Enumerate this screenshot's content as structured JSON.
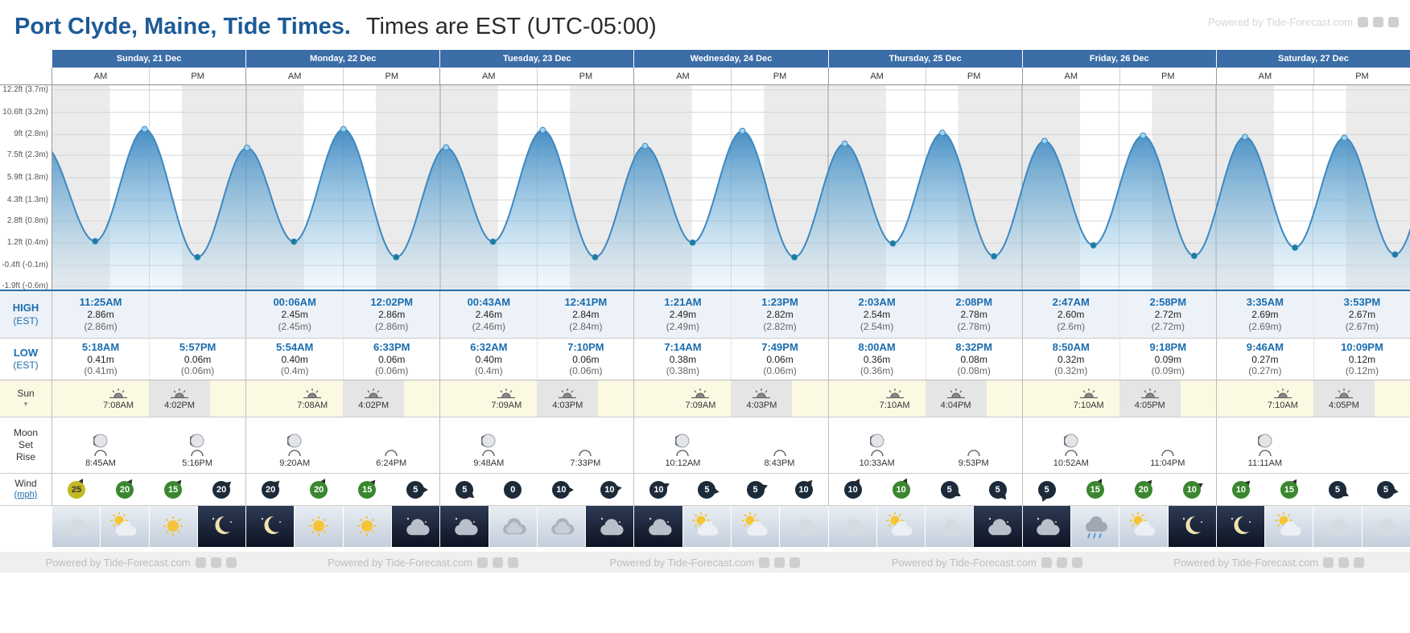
{
  "header": {
    "title": "Port Clyde, Maine, Tide Times.",
    "subtitle": "Times are EST (UTC-05:00)",
    "watermark": "Powered by Tide-Forecast.com"
  },
  "columns": {
    "am": "AM",
    "pm": "PM"
  },
  "row_labels": {
    "high_1": "HIGH",
    "high_2": "(EST)",
    "low_1": "LOW",
    "low_2": "(EST)",
    "sun": "Sun",
    "moon_1": "Moon",
    "moon_2": "Set",
    "moon_3": "Rise",
    "wind_1": "Wind",
    "wind_2": "(mph)"
  },
  "days": [
    {
      "name": "Sunday, 21 Dec",
      "high": {
        "am": {
          "time": "11:25AM",
          "height": "2.86m",
          "alt": "(2.86m)"
        },
        "pm": null
      },
      "low": {
        "am": {
          "time": "5:18AM",
          "height": "0.41m",
          "alt": "(0.41m)"
        },
        "pm": {
          "time": "5:57PM",
          "height": "0.06m",
          "alt": "(0.06m)"
        }
      },
      "sun": {
        "rise": "7:08AM",
        "set": "4:02PM"
      },
      "moon": {
        "set": "8:45AM",
        "rise": "5:16PM",
        "rise_icon": true
      },
      "wind": [
        {
          "speed": 25,
          "color": "#c2b822",
          "text": "#333",
          "dir": 30
        },
        {
          "speed": 20,
          "color": "#3a872f",
          "dir": 35
        },
        {
          "speed": 15,
          "color": "#3a872f",
          "dir": 40
        },
        {
          "speed": 20,
          "color": "#1c2b3a",
          "dir": 50
        }
      ],
      "weather": [
        "cloud",
        "sun-cloud",
        "sun",
        "moon"
      ]
    },
    {
      "name": "Monday, 22 Dec",
      "high": {
        "am": {
          "time": "00:06AM",
          "height": "2.45m",
          "alt": "(2.45m)"
        },
        "pm": {
          "time": "12:02PM",
          "height": "2.86m",
          "alt": "(2.86m)"
        }
      },
      "low": {
        "am": {
          "time": "5:54AM",
          "height": "0.40m",
          "alt": "(0.4m)"
        },
        "pm": {
          "time": "6:33PM",
          "height": "0.06m",
          "alt": "(0.06m)"
        }
      },
      "sun": {
        "rise": "7:08AM",
        "set": "4:02PM"
      },
      "moon": {
        "set": "9:20AM",
        "rise": "6:24PM",
        "rise_icon": false
      },
      "wind": [
        {
          "speed": 20,
          "color": "#1c2b3a",
          "dir": 45
        },
        {
          "speed": 20,
          "color": "#3a872f",
          "dir": 30
        },
        {
          "speed": 15,
          "color": "#3a872f",
          "dir": 40
        },
        {
          "speed": 5,
          "color": "#1c2b3a",
          "dir": 90
        }
      ],
      "weather": [
        "moon",
        "sun",
        "sun",
        "cloud-night"
      ]
    },
    {
      "name": "Tuesday, 23 Dec",
      "high": {
        "am": {
          "time": "00:43AM",
          "height": "2.46m",
          "alt": "(2.46m)"
        },
        "pm": {
          "time": "12:41PM",
          "height": "2.84m",
          "alt": "(2.84m)"
        }
      },
      "low": {
        "am": {
          "time": "6:32AM",
          "height": "0.40m",
          "alt": "(0.4m)"
        },
        "pm": {
          "time": "7:10PM",
          "height": "0.06m",
          "alt": "(0.06m)"
        }
      },
      "sun": {
        "rise": "7:09AM",
        "set": "4:03PM"
      },
      "moon": {
        "set": "9:48AM",
        "rise": "7:33PM",
        "rise_icon": false
      },
      "wind": [
        {
          "speed": 5,
          "color": "#1c2b3a",
          "dir": 130
        },
        {
          "speed": 0,
          "color": "#1c2b3a",
          "dir": null
        },
        {
          "speed": 10,
          "color": "#1c2b3a",
          "dir": 90
        },
        {
          "speed": 10,
          "color": "#1c2b3a",
          "dir": 80
        }
      ],
      "weather": [
        "cloud-night",
        "overcast",
        "overcast",
        "cloud-night"
      ]
    },
    {
      "name": "Wednesday, 24 Dec",
      "high": {
        "am": {
          "time": "1:21AM",
          "height": "2.49m",
          "alt": "(2.49m)"
        },
        "pm": {
          "time": "1:23PM",
          "height": "2.82m",
          "alt": "(2.82m)"
        }
      },
      "low": {
        "am": {
          "time": "7:14AM",
          "height": "0.38m",
          "alt": "(0.38m)"
        },
        "pm": {
          "time": "7:49PM",
          "height": "0.06m",
          "alt": "(0.06m)"
        }
      },
      "sun": {
        "rise": "7:09AM",
        "set": "4:03PM"
      },
      "moon": {
        "set": "10:12AM",
        "rise": "8:43PM",
        "rise_icon": false
      },
      "wind": [
        {
          "speed": 10,
          "color": "#1c2b3a",
          "dir": 60
        },
        {
          "speed": 5,
          "color": "#1c2b3a",
          "dir": 100
        },
        {
          "speed": 5,
          "color": "#1c2b3a",
          "dir": 70
        },
        {
          "speed": 10,
          "color": "#1c2b3a",
          "dir": 40
        }
      ],
      "weather": [
        "cloud-night",
        "sun-cloud",
        "sun-cloud",
        "cloud"
      ]
    },
    {
      "name": "Thursday, 25 Dec",
      "high": {
        "am": {
          "time": "2:03AM",
          "height": "2.54m",
          "alt": "(2.54m)"
        },
        "pm": {
          "time": "2:08PM",
          "height": "2.78m",
          "alt": "(2.78m)"
        }
      },
      "low": {
        "am": {
          "time": "8:00AM",
          "height": "0.36m",
          "alt": "(0.36m)"
        },
        "pm": {
          "time": "8:32PM",
          "height": "0.08m",
          "alt": "(0.08m)"
        }
      },
      "sun": {
        "rise": "7:10AM",
        "set": "4:04PM"
      },
      "moon": {
        "set": "10:33AM",
        "rise": "9:53PM",
        "rise_icon": false
      },
      "wind": [
        {
          "speed": 10,
          "color": "#1c2b3a",
          "dir": 30
        },
        {
          "speed": 10,
          "color": "#3a872f",
          "dir": 25
        },
        {
          "speed": 5,
          "color": "#1c2b3a",
          "dir": 120
        },
        {
          "speed": 5,
          "color": "#1c2b3a",
          "dir": 140
        }
      ],
      "weather": [
        "cloud",
        "sun-cloud",
        "cloud",
        "cloud-night"
      ]
    },
    {
      "name": "Friday, 26 Dec",
      "high": {
        "am": {
          "time": "2:47AM",
          "height": "2.60m",
          "alt": "(2.6m)"
        },
        "pm": {
          "time": "2:58PM",
          "height": "2.72m",
          "alt": "(2.72m)"
        }
      },
      "low": {
        "am": {
          "time": "8:50AM",
          "height": "0.32m",
          "alt": "(0.32m)"
        },
        "pm": {
          "time": "9:18PM",
          "height": "0.09m",
          "alt": "(0.09m)"
        }
      },
      "sun": {
        "rise": "7:10AM",
        "set": "4:05PM"
      },
      "moon": {
        "set": "10:52AM",
        "rise": "11:04PM",
        "rise_icon": false
      },
      "wind": [
        {
          "speed": 5,
          "color": "#1c2b3a",
          "dir": 200
        },
        {
          "speed": 15,
          "color": "#3a872f",
          "dir": 30
        },
        {
          "speed": 20,
          "color": "#3a872f",
          "dir": 40
        },
        {
          "speed": 10,
          "color": "#3a872f",
          "dir": 60
        }
      ],
      "weather": [
        "cloud-night",
        "rain",
        "sun-cloud",
        "moon"
      ]
    },
    {
      "name": "Saturday, 27 Dec",
      "high": {
        "am": {
          "time": "3:35AM",
          "height": "2.69m",
          "alt": "(2.69m)"
        },
        "pm": {
          "time": "3:53PM",
          "height": "2.67m",
          "alt": "(2.67m)"
        }
      },
      "low": {
        "am": {
          "time": "9:46AM",
          "height": "0.27m",
          "alt": "(0.27m)"
        },
        "pm": {
          "time": "10:09PM",
          "height": "0.12m",
          "alt": "(0.12m)"
        }
      },
      "sun": {
        "rise": "7:10AM",
        "set": "4:05PM"
      },
      "moon": {
        "set": "11:11AM",
        "rise": null,
        "rise_icon": false
      },
      "wind": [
        {
          "speed": 10,
          "color": "#3a872f",
          "dir": 45
        },
        {
          "speed": 15,
          "color": "#3a872f",
          "dir": 35
        },
        {
          "speed": 5,
          "color": "#1c2b3a",
          "dir": 120
        },
        {
          "speed": 5,
          "color": "#1c2b3a",
          "dir": 100
        }
      ],
      "weather": [
        "moon",
        "sun-cloud",
        "cloud",
        "cloud"
      ]
    }
  ],
  "chart_data": {
    "type": "area",
    "series_name": "Tide height, meters (7 days, hourly curve between high/low extremes)",
    "x_hours": [
      0,
      168
    ],
    "ylim_m": [
      -0.68,
      3.82
    ],
    "yticks": [
      {
        "label": "12.2ft (3.7m)",
        "m": 3.72
      },
      {
        "label": "10.6ft (3.2m)",
        "m": 3.23
      },
      {
        "label": "9ft (2.8m)",
        "m": 2.74
      },
      {
        "label": "7.5ft (2.3m)",
        "m": 2.29
      },
      {
        "label": "5.9ft (1.8m)",
        "m": 1.8
      },
      {
        "label": "4.3ft (1.3m)",
        "m": 1.31
      },
      {
        "label": "2.8ft (0.8m)",
        "m": 0.85
      },
      {
        "label": "1.2ft (0.4m)",
        "m": 0.37
      },
      {
        "label": "-0.4ft (-0.1m)",
        "m": -0.12
      },
      {
        "label": "-1.9ft (-0.6m)",
        "m": -0.58
      }
    ],
    "tide_points": [
      {
        "t": -1.1,
        "h": 2.5,
        "type": "edge"
      },
      {
        "t": 5.3,
        "h": 0.41,
        "type": "low"
      },
      {
        "t": 11.42,
        "h": 2.86,
        "type": "high"
      },
      {
        "t": 17.95,
        "h": 0.06,
        "type": "low"
      },
      {
        "t": 24.1,
        "h": 2.45,
        "type": "high"
      },
      {
        "t": 29.9,
        "h": 0.4,
        "type": "low"
      },
      {
        "t": 36.03,
        "h": 2.86,
        "type": "high"
      },
      {
        "t": 42.55,
        "h": 0.06,
        "type": "low"
      },
      {
        "t": 48.72,
        "h": 2.46,
        "type": "high"
      },
      {
        "t": 54.53,
        "h": 0.4,
        "type": "low"
      },
      {
        "t": 60.68,
        "h": 2.84,
        "type": "high"
      },
      {
        "t": 67.17,
        "h": 0.06,
        "type": "low"
      },
      {
        "t": 73.35,
        "h": 2.49,
        "type": "high"
      },
      {
        "t": 79.23,
        "h": 0.38,
        "type": "low"
      },
      {
        "t": 85.38,
        "h": 2.82,
        "type": "high"
      },
      {
        "t": 91.82,
        "h": 0.06,
        "type": "low"
      },
      {
        "t": 98.05,
        "h": 2.54,
        "type": "high"
      },
      {
        "t": 104.0,
        "h": 0.36,
        "type": "low"
      },
      {
        "t": 110.13,
        "h": 2.78,
        "type": "high"
      },
      {
        "t": 116.53,
        "h": 0.08,
        "type": "low"
      },
      {
        "t": 122.78,
        "h": 2.6,
        "type": "high"
      },
      {
        "t": 128.83,
        "h": 0.32,
        "type": "low"
      },
      {
        "t": 134.97,
        "h": 2.72,
        "type": "high"
      },
      {
        "t": 141.3,
        "h": 0.09,
        "type": "low"
      },
      {
        "t": 147.58,
        "h": 2.69,
        "type": "high"
      },
      {
        "t": 153.77,
        "h": 0.27,
        "type": "low"
      },
      {
        "t": 159.88,
        "h": 2.67,
        "type": "high"
      },
      {
        "t": 166.15,
        "h": 0.12,
        "type": "low"
      },
      {
        "t": 172.3,
        "h": 2.63,
        "type": "edge"
      }
    ],
    "night_bands": [
      [
        0,
        7.13
      ],
      [
        16.03,
        31.13
      ],
      [
        40.03,
        55.15
      ],
      [
        64.05,
        79.15
      ],
      [
        88.05,
        103.17
      ],
      [
        112.07,
        127.17
      ],
      [
        136.08,
        151.17
      ],
      [
        160.08,
        168
      ]
    ],
    "grid": true,
    "legend": "none",
    "colors": {
      "curve": "#3d88c0",
      "fill_top": "#4593c6",
      "dot_high": "#9fd4f0",
      "dot_low": "#177f9c",
      "night_band": "#ebebeb",
      "day_header_bg": "#3b6da7",
      "accent_blue": "#1a6daf"
    }
  }
}
